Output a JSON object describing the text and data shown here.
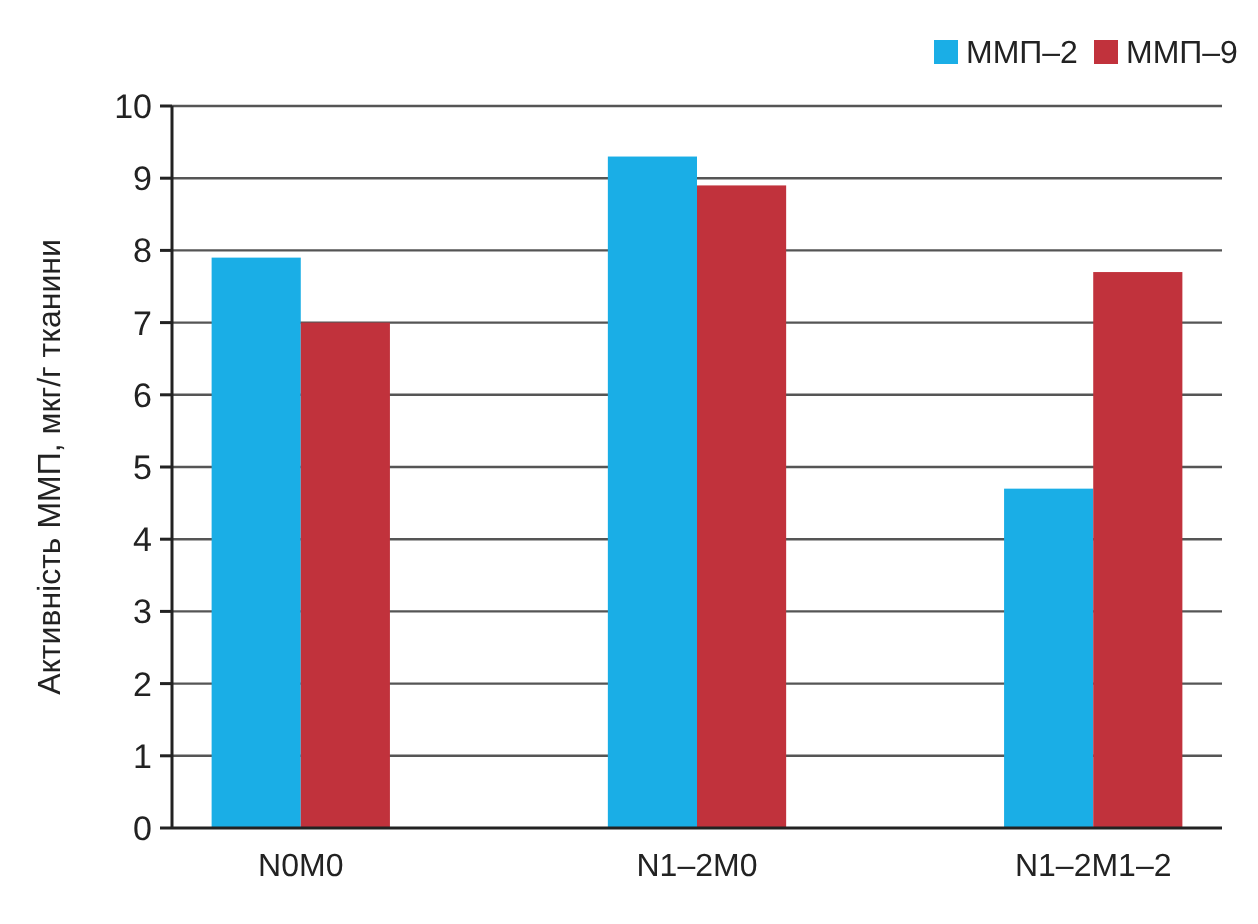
{
  "chart_data": {
    "type": "bar",
    "ylabel": "Активність ММП, мкг/г тканини",
    "categories": [
      "N0M0",
      "N1–2M0",
      "N1–2M1–2"
    ],
    "series": [
      {
        "name": "ММП–2",
        "color": "#1aaee6",
        "values": [
          7.9,
          9.3,
          4.7
        ]
      },
      {
        "name": "ММП–9",
        "color": "#c1323c",
        "values": [
          7.0,
          8.9,
          7.7
        ]
      }
    ],
    "ylim": [
      0,
      10
    ],
    "yticks": [
      0,
      1,
      2,
      3,
      4,
      5,
      6,
      7,
      8,
      9,
      10
    ],
    "grid": "y",
    "legend": "top right"
  }
}
